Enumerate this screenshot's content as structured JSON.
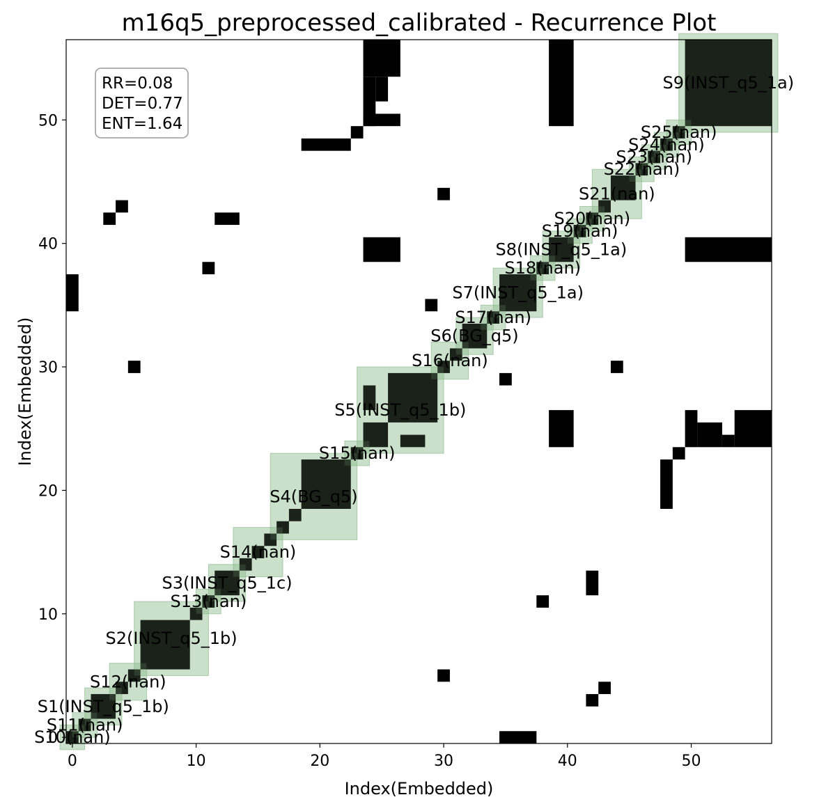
{
  "chart_data": {
    "type": "heatmap",
    "title": "m16q5_preprocessed_calibrated - Recurrence Plot",
    "xlabel": "Index(Embedded)",
    "ylabel": "Index(Embedded)",
    "xlim": [
      -0.5,
      56.5
    ],
    "ylim": [
      -0.5,
      56.5
    ],
    "xticks": [
      0,
      10,
      20,
      30,
      40,
      50
    ],
    "yticks": [
      0,
      10,
      20,
      30,
      40,
      50
    ],
    "stats": [
      "RR=0.08",
      "DET=0.77",
      "ENT=1.64"
    ],
    "colors": {
      "recurrence": "#000000",
      "segment_fill": "#8fbc8f",
      "background": "#ffffff"
    },
    "segments": [
      {
        "label": "S10(nan)",
        "start": 0,
        "end": 0
      },
      {
        "label": "S11(nan)",
        "start": 1,
        "end": 1
      },
      {
        "label": "S1(INST_q5_1b)",
        "start": 2,
        "end": 3
      },
      {
        "label": "S12(nan)",
        "start": 4,
        "end": 5
      },
      {
        "label": "S2(INST_q5_1b)",
        "start": 6,
        "end": 10
      },
      {
        "label": "S13(nan)",
        "start": 11,
        "end": 11
      },
      {
        "label": "S3(INST_q5_1c)",
        "start": 12,
        "end": 13
      },
      {
        "label": "S14(nan)",
        "start": 14,
        "end": 16
      },
      {
        "label": "S4(BG_q5)",
        "start": 17,
        "end": 22
      },
      {
        "label": "S15(nan)",
        "start": 23,
        "end": 23
      },
      {
        "label": "S5(INST_q5_1b)",
        "start": 24,
        "end": 29
      },
      {
        "label": "S16(nan)",
        "start": 30,
        "end": 31
      },
      {
        "label": "S6(BG_q5)",
        "start": 32,
        "end": 33
      },
      {
        "label": "S17(nan)",
        "start": 34,
        "end": 34
      },
      {
        "label": "S7(INST_q5_1a)",
        "start": 35,
        "end": 37
      },
      {
        "label": "S18(nan)",
        "start": 38,
        "end": 38
      },
      {
        "label": "S8(INST_q5_1a)",
        "start": 39,
        "end": 40
      },
      {
        "label": "S19(nan)",
        "start": 41,
        "end": 41
      },
      {
        "label": "S20(nan)",
        "start": 42,
        "end": 42
      },
      {
        "label": "S21(nan)",
        "start": 43,
        "end": 45
      },
      {
        "label": "S22(nan)",
        "start": 46,
        "end": 46
      },
      {
        "label": "S23(nan)",
        "start": 47,
        "end": 47
      },
      {
        "label": "S24(nan)",
        "start": 48,
        "end": 48
      },
      {
        "label": "S25(nan)",
        "start": 49,
        "end": 49
      },
      {
        "label": "S9(INST_q5_1a)",
        "start": 50,
        "end": 56
      }
    ],
    "recurrence_blocks": [
      [
        0,
        0,
        0,
        0
      ],
      [
        1,
        1,
        1,
        1
      ],
      [
        2,
        3,
        2,
        3
      ],
      [
        4,
        4,
        4,
        4
      ],
      [
        5,
        5,
        5,
        5
      ],
      [
        6,
        9,
        6,
        9
      ],
      [
        10,
        10,
        10,
        10
      ],
      [
        11,
        11,
        11,
        11
      ],
      [
        12,
        13,
        12,
        13
      ],
      [
        14,
        14,
        14,
        14
      ],
      [
        15,
        15,
        15,
        15
      ],
      [
        16,
        16,
        16,
        16
      ],
      [
        17,
        17,
        17,
        17
      ],
      [
        18,
        18,
        18,
        18
      ],
      [
        19,
        22,
        19,
        22
      ],
      [
        23,
        23,
        23,
        23
      ],
      [
        24,
        25,
        24,
        25
      ],
      [
        26,
        29,
        26,
        29
      ],
      [
        24,
        24,
        27,
        28
      ],
      [
        27,
        28,
        24,
        24
      ],
      [
        30,
        30,
        30,
        30
      ],
      [
        31,
        31,
        31,
        31
      ],
      [
        32,
        33,
        32,
        33
      ],
      [
        34,
        34,
        34,
        34
      ],
      [
        35,
        37,
        35,
        37
      ],
      [
        38,
        38,
        38,
        38
      ],
      [
        39,
        40,
        39,
        40
      ],
      [
        41,
        41,
        41,
        41
      ],
      [
        42,
        42,
        42,
        42
      ],
      [
        43,
        43,
        43,
        43
      ],
      [
        44,
        45,
        44,
        45
      ],
      [
        46,
        46,
        46,
        46
      ],
      [
        47,
        47,
        47,
        47
      ],
      [
        48,
        48,
        48,
        48
      ],
      [
        49,
        49,
        49,
        49
      ],
      [
        50,
        56,
        50,
        56
      ],
      [
        24,
        26,
        54,
        56
      ],
      [
        24,
        24,
        50,
        53
      ],
      [
        25,
        25,
        52,
        53
      ],
      [
        24,
        26,
        50,
        50
      ],
      [
        23,
        23,
        49,
        49
      ],
      [
        19,
        22,
        48,
        48
      ],
      [
        39,
        40,
        50,
        56
      ],
      [
        24,
        26,
        39,
        40
      ],
      [
        50,
        56,
        39,
        40
      ],
      [
        30,
        30,
        44,
        44
      ],
      [
        3,
        3,
        42,
        42
      ],
      [
        4,
        4,
        43,
        43
      ],
      [
        12,
        13,
        42,
        42
      ],
      [
        11,
        11,
        38,
        38
      ],
      [
        0,
        0,
        35,
        37
      ],
      [
        29,
        29,
        35,
        35
      ],
      [
        5,
        5,
        30,
        30
      ],
      [
        35,
        35,
        29,
        29
      ],
      [
        44,
        44,
        30,
        30
      ],
      [
        39,
        40,
        24,
        26
      ],
      [
        50,
        50,
        24,
        26
      ],
      [
        51,
        52,
        24,
        25
      ],
      [
        53,
        53,
        24,
        24
      ],
      [
        54,
        56,
        24,
        26
      ],
      [
        49,
        49,
        23,
        23
      ],
      [
        48,
        48,
        19,
        22
      ],
      [
        42,
        42,
        12,
        13
      ],
      [
        38,
        38,
        11,
        11
      ],
      [
        30,
        30,
        5,
        5
      ],
      [
        42,
        42,
        3,
        3
      ],
      [
        43,
        43,
        4,
        4
      ],
      [
        35,
        37,
        0,
        0
      ]
    ]
  }
}
